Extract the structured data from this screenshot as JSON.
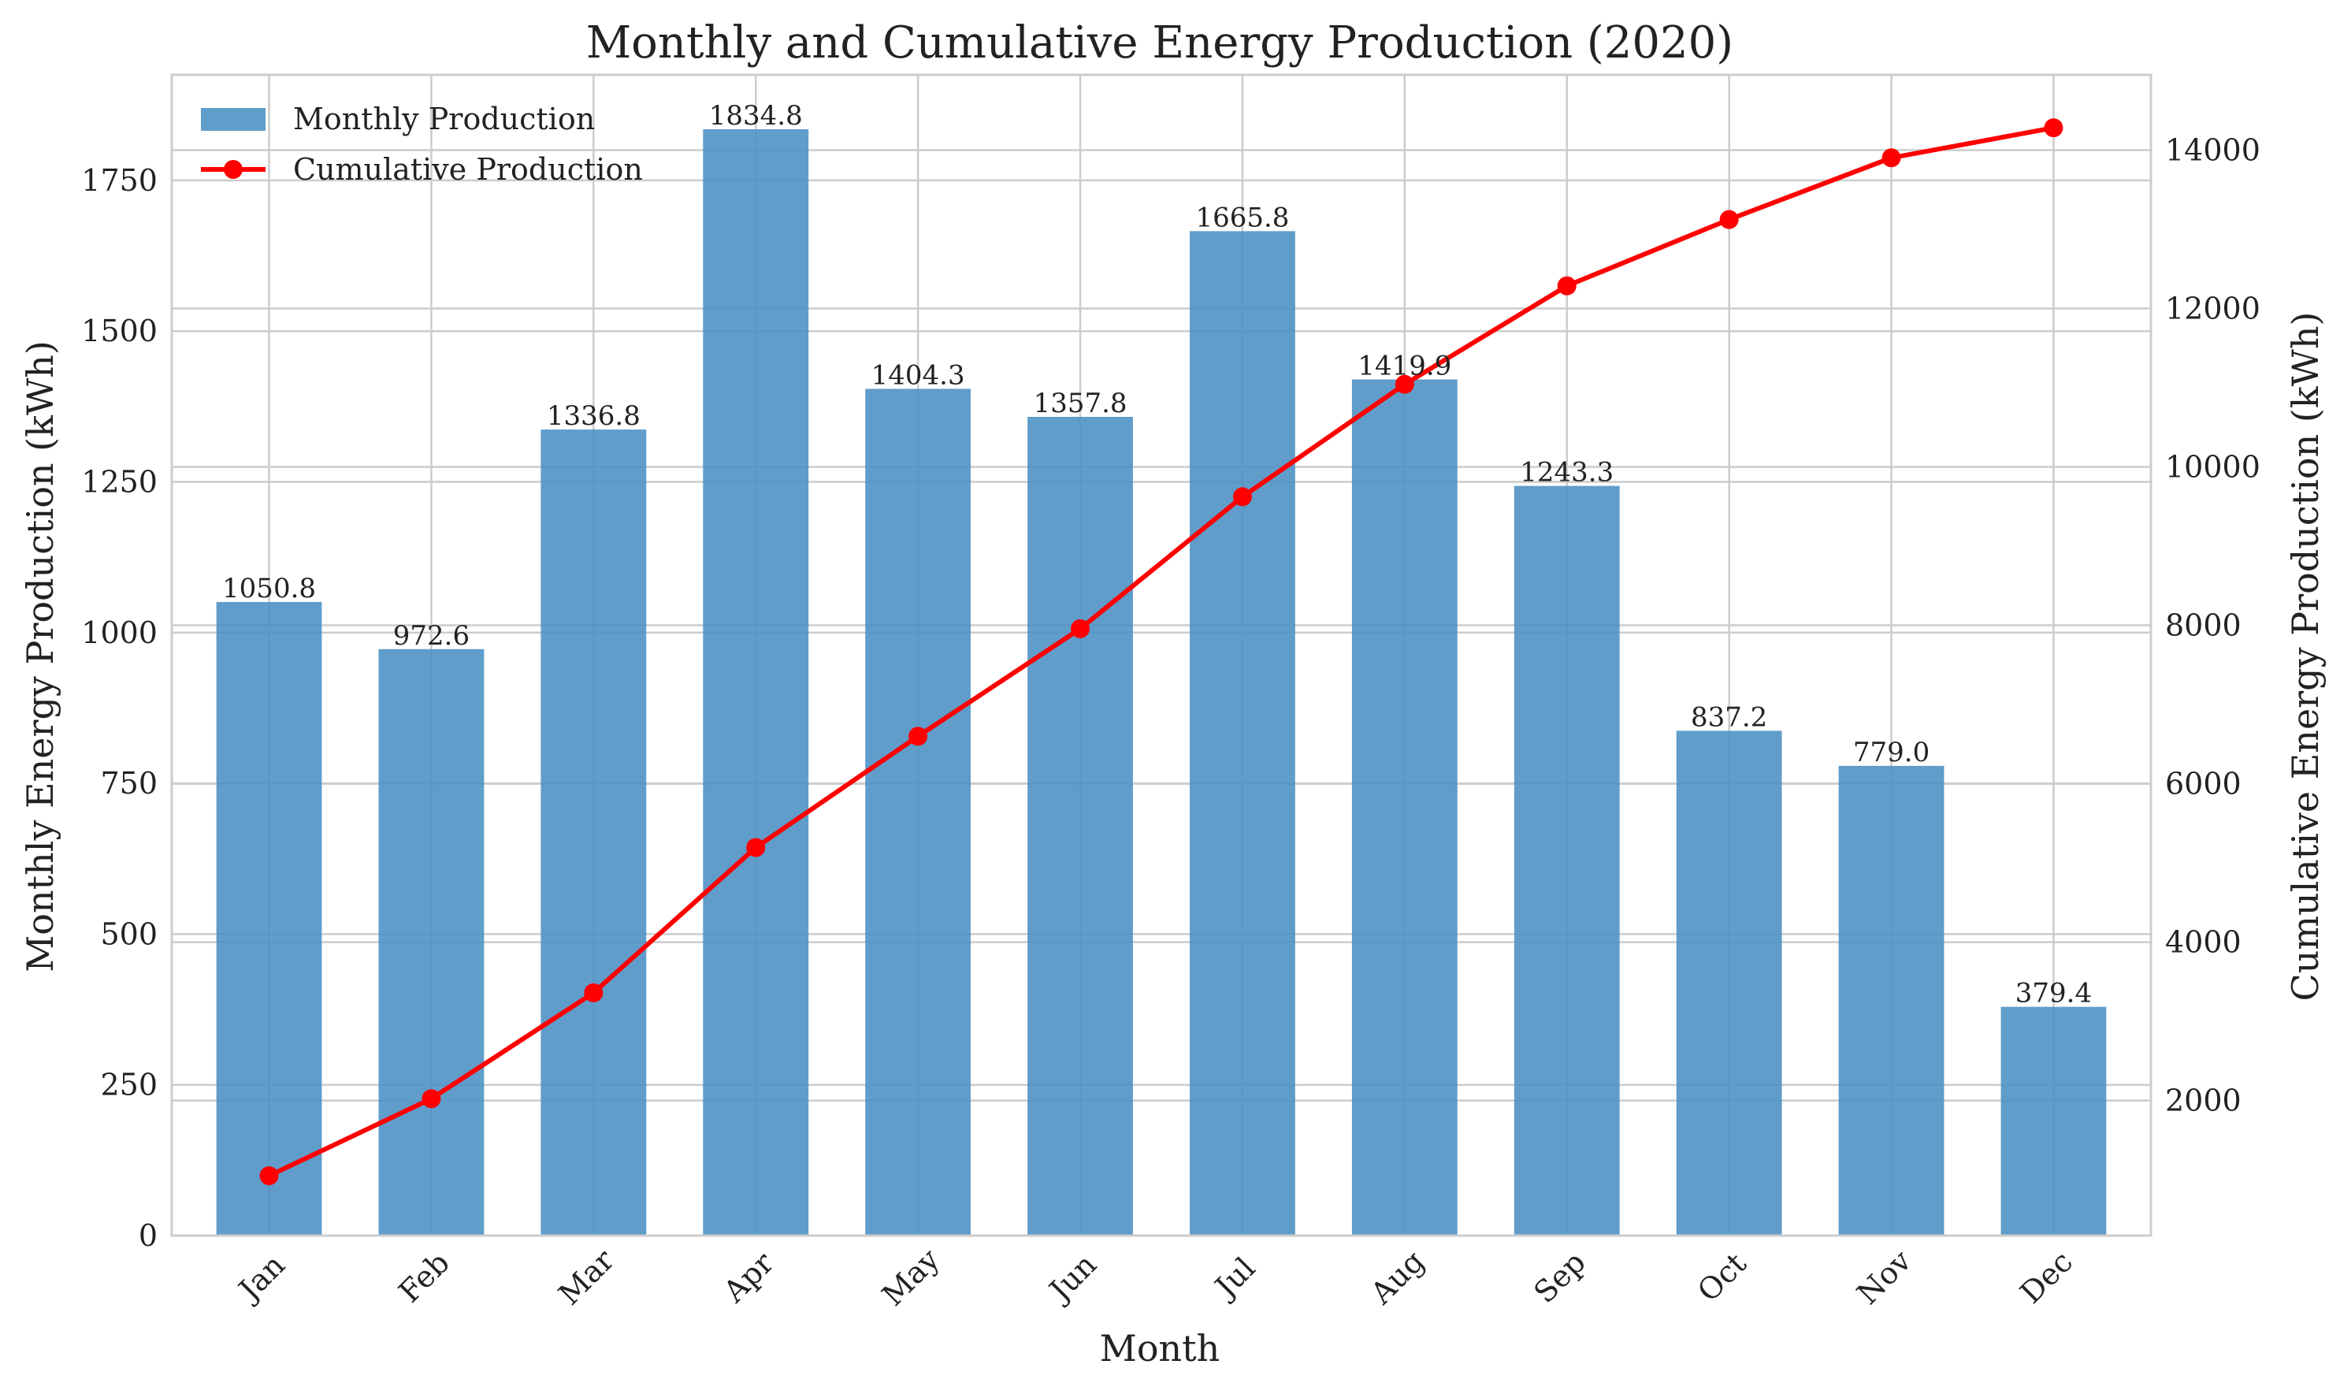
{
  "chart_data": {
    "type": "bar",
    "title": "Monthly and Cumulative Energy Production (2020)",
    "xlabel": "Month",
    "ylabel": "Monthly Energy Production (kWh)",
    "y2label": "Cumulative Energy Production (kWh)",
    "categories": [
      "Jan",
      "Feb",
      "Mar",
      "Apr",
      "May",
      "Jun",
      "Jul",
      "Aug",
      "Sep",
      "Oct",
      "Nov",
      "Dec"
    ],
    "series": [
      {
        "name": "Monthly Production",
        "type": "bar",
        "axis": "left",
        "color": "#4a90c4",
        "values": [
          1050.8,
          972.6,
          1336.8,
          1834.8,
          1404.3,
          1357.8,
          1665.8,
          1419.9,
          1243.3,
          837.2,
          779.0,
          379.4
        ],
        "labels": [
          "1050.8",
          "972.6",
          "1336.8",
          "1834.8",
          "1404.3",
          "1357.8",
          "1665.8",
          "1419.9",
          "1243.3",
          "837.2",
          "779.0",
          "379.4"
        ]
      },
      {
        "name": "Cumulative Production",
        "type": "line",
        "axis": "right",
        "color": "#ff0000",
        "marker": "circle",
        "values": [
          1050.8,
          2023.4,
          3360.2,
          5195.0,
          6599.3,
          7957.1,
          9622.9,
          11042.8,
          12286.1,
          13123.3,
          13902.3,
          14281.7
        ]
      }
    ],
    "ylim": [
      0,
      1925
    ],
    "y_ticks": [
      0,
      250,
      500,
      750,
      1000,
      1250,
      1500,
      1750
    ],
    "y2lim": [
      295,
      14950
    ],
    "y2_ticks": [
      2000,
      4000,
      6000,
      8000,
      10000,
      12000,
      14000
    ],
    "grid": true,
    "legend_position": "top-left"
  }
}
